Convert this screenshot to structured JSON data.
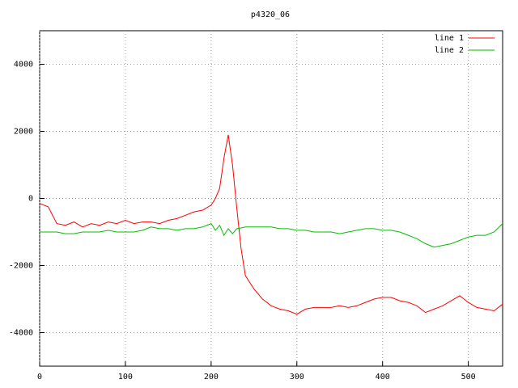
{
  "chart_data": {
    "type": "line",
    "title": "p4320_06",
    "x": [
      0,
      10,
      20,
      30,
      40,
      50,
      60,
      70,
      80,
      90,
      100,
      110,
      120,
      130,
      140,
      150,
      160,
      170,
      180,
      190,
      200,
      205,
      210,
      215,
      220,
      225,
      230,
      235,
      240,
      250,
      260,
      270,
      280,
      290,
      300,
      310,
      320,
      330,
      340,
      350,
      360,
      370,
      380,
      390,
      400,
      410,
      420,
      430,
      440,
      450,
      460,
      470,
      480,
      490,
      500,
      510,
      520,
      530,
      540
    ],
    "series": [
      {
        "name": "line 1",
        "color": "#ff0000",
        "values": [
          -150,
          -250,
          -750,
          -800,
          -700,
          -850,
          -750,
          -800,
          -700,
          -750,
          -650,
          -750,
          -700,
          -700,
          -750,
          -650,
          -600,
          -500,
          -400,
          -350,
          -200,
          0,
          300,
          1200,
          1900,
          1000,
          -300,
          -1500,
          -2300,
          -2700,
          -3000,
          -3200,
          -3300,
          -3350,
          -3450,
          -3300,
          -3250,
          -3250,
          -3250,
          -3200,
          -3250,
          -3200,
          -3100,
          -3000,
          -2950,
          -2950,
          -3050,
          -3100,
          -3200,
          -3400,
          -3300,
          -3200,
          -3050,
          -2900,
          -3100,
          -3250,
          -3300,
          -3350,
          -3150
        ]
      },
      {
        "name": "line 2",
        "color": "#00c000",
        "values": [
          -1000,
          -1000,
          -1000,
          -1050,
          -1050,
          -1000,
          -1000,
          -1000,
          -950,
          -1000,
          -1000,
          -1000,
          -950,
          -850,
          -900,
          -900,
          -950,
          -900,
          -900,
          -850,
          -750,
          -950,
          -800,
          -1100,
          -900,
          -1050,
          -900,
          -880,
          -850,
          -850,
          -850,
          -850,
          -900,
          -900,
          -950,
          -950,
          -1000,
          -1000,
          -1000,
          -1050,
          -1000,
          -950,
          -900,
          -900,
          -950,
          -950,
          -1000,
          -1100,
          -1200,
          -1350,
          -1450,
          -1400,
          -1350,
          -1250,
          -1150,
          -1100,
          -1100,
          -1000,
          -750
        ]
      }
    ],
    "xlim": [
      0,
      540
    ],
    "xticks": [
      0,
      100,
      200,
      300,
      400,
      500
    ],
    "ylim": [
      -5000,
      5000
    ],
    "yticks": [
      -4000,
      -2000,
      0,
      2000,
      4000
    ],
    "grid": true,
    "legend": "top-right"
  }
}
